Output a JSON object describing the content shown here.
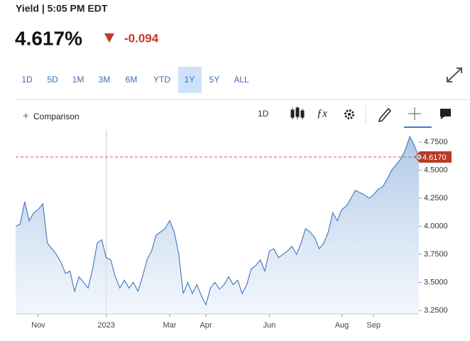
{
  "header": {
    "title": "Yield | 5:05 PM EDT",
    "price": "4.617%",
    "change": "-0.094"
  },
  "ranges": [
    "1D",
    "5D",
    "1M",
    "3M",
    "6M",
    "YTD",
    "1Y",
    "5Y",
    "ALL"
  ],
  "selected_range": "1Y",
  "toolbar": {
    "comparison": "Comparison",
    "interval": "1D"
  },
  "chart_data": {
    "type": "area",
    "color": "#4a7fc1",
    "categories": [
      null,
      null,
      null,
      null,
      null,
      "Nov",
      null,
      null,
      null,
      null,
      null,
      null,
      null,
      null,
      null,
      null,
      null,
      null,
      null,
      null,
      "2023",
      null,
      null,
      null,
      null,
      null,
      null,
      null,
      null,
      null,
      null,
      null,
      null,
      null,
      "Mar",
      null,
      null,
      null,
      null,
      null,
      null,
      null,
      "Apr",
      null,
      null,
      null,
      null,
      null,
      null,
      null,
      null,
      null,
      null,
      null,
      null,
      null,
      "Jun",
      null,
      null,
      null,
      null,
      null,
      null,
      null,
      null,
      null,
      null,
      null,
      null,
      null,
      null,
      null,
      "Aug",
      null,
      null,
      null,
      null,
      null,
      null,
      "Sep",
      null,
      null,
      null,
      null,
      null,
      null,
      null,
      null,
      null,
      null
    ],
    "values": [
      4.0,
      4.02,
      4.22,
      4.05,
      4.12,
      4.15,
      4.2,
      3.85,
      3.8,
      3.75,
      3.68,
      3.58,
      3.6,
      3.42,
      3.55,
      3.5,
      3.45,
      3.62,
      3.85,
      3.88,
      3.72,
      3.7,
      3.55,
      3.45,
      3.52,
      3.45,
      3.5,
      3.42,
      3.55,
      3.7,
      3.78,
      3.92,
      3.95,
      3.98,
      4.05,
      3.95,
      3.75,
      3.4,
      3.5,
      3.4,
      3.48,
      3.38,
      3.3,
      3.45,
      3.5,
      3.44,
      3.48,
      3.55,
      3.48,
      3.52,
      3.4,
      3.48,
      3.62,
      3.65,
      3.7,
      3.6,
      3.78,
      3.8,
      3.72,
      3.75,
      3.78,
      3.82,
      3.75,
      3.85,
      3.98,
      3.95,
      3.9,
      3.8,
      3.85,
      3.95,
      4.12,
      4.05,
      4.15,
      4.18,
      4.25,
      4.32,
      4.3,
      4.28,
      4.25,
      4.28,
      4.33,
      4.35,
      4.42,
      4.5,
      4.55,
      4.6,
      4.68,
      4.8,
      4.72,
      4.617
    ],
    "ylim": [
      3.25,
      4.75
    ],
    "yticks": [
      {
        "value": 3.25,
        "label": "3.2500"
      },
      {
        "value": 3.5,
        "label": "3.5000"
      },
      {
        "value": 3.75,
        "label": "3.7500"
      },
      {
        "value": 4.0,
        "label": "4.0000"
      },
      {
        "value": 4.25,
        "label": "4.2500"
      },
      {
        "value": 4.5,
        "label": "4.5000"
      },
      {
        "value": 4.75,
        "label": "4.7500"
      }
    ],
    "reference_line": {
      "value": 4.617,
      "label": "4.6170"
    }
  }
}
